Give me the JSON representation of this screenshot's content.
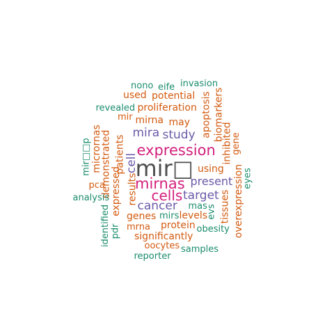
{
  "palette": {
    "gray": "#4d4d4d",
    "magenta": "#d3207d",
    "purple": "#6a5aa8",
    "orange": "#d35a0f",
    "teal": "#1a8c6c"
  },
  "words": [
    {
      "text": "mir□",
      "color": "gray"
    },
    {
      "text": "expression",
      "color": "magenta"
    },
    {
      "text": "mirnas",
      "color": "magenta"
    },
    {
      "text": "cells",
      "color": "magenta"
    },
    {
      "text": "study",
      "color": "purple"
    },
    {
      "text": "mira",
      "color": "purple"
    },
    {
      "text": "cell",
      "color": "purple"
    },
    {
      "text": "target",
      "color": "purple"
    },
    {
      "text": "present",
      "color": "purple"
    },
    {
      "text": "cancer",
      "color": "purple"
    },
    {
      "text": "may",
      "color": "orange"
    },
    {
      "text": "mirna",
      "color": "orange"
    },
    {
      "text": "proliferation",
      "color": "orange"
    },
    {
      "text": "potential",
      "color": "orange"
    },
    {
      "text": "used",
      "color": "orange"
    },
    {
      "text": "using",
      "color": "orange"
    },
    {
      "text": "patients",
      "color": "orange"
    },
    {
      "text": "results",
      "color": "orange"
    },
    {
      "text": "apoptosis",
      "color": "orange"
    },
    {
      "text": "biomarkers",
      "color": "orange"
    },
    {
      "text": "inhibited",
      "color": "orange"
    },
    {
      "text": "gene",
      "color": "orange"
    },
    {
      "text": "tissues",
      "color": "orange"
    },
    {
      "text": "overexpression",
      "color": "orange"
    },
    {
      "text": "levels",
      "color": "orange"
    },
    {
      "text": "genes",
      "color": "orange"
    },
    {
      "text": "protein",
      "color": "orange"
    },
    {
      "text": "mrna",
      "color": "orange"
    },
    {
      "text": "significantly",
      "color": "orange"
    },
    {
      "text": "oocytes",
      "color": "orange"
    },
    {
      "text": "expressed",
      "color": "orange"
    },
    {
      "text": "demonstrated",
      "color": "orange"
    },
    {
      "text": "micrornas",
      "color": "orange"
    },
    {
      "text": "pca",
      "color": "orange"
    },
    {
      "text": "mir",
      "color": "orange"
    },
    {
      "text": "nono",
      "color": "teal"
    },
    {
      "text": "eife",
      "color": "teal"
    },
    {
      "text": "invasion",
      "color": "teal"
    },
    {
      "text": "revealed",
      "color": "teal"
    },
    {
      "text": "mir□□p",
      "color": "teal"
    },
    {
      "text": "analysis",
      "color": "teal"
    },
    {
      "text": "identified",
      "color": "teal"
    },
    {
      "text": "pdr",
      "color": "teal"
    },
    {
      "text": "mirs",
      "color": "teal"
    },
    {
      "text": "mas",
      "color": "teal"
    },
    {
      "text": "evs",
      "color": "teal"
    },
    {
      "text": "eyes",
      "color": "teal"
    },
    {
      "text": "obesity",
      "color": "teal"
    },
    {
      "text": "samples",
      "color": "teal"
    },
    {
      "text": "reporter",
      "color": "teal"
    }
  ]
}
